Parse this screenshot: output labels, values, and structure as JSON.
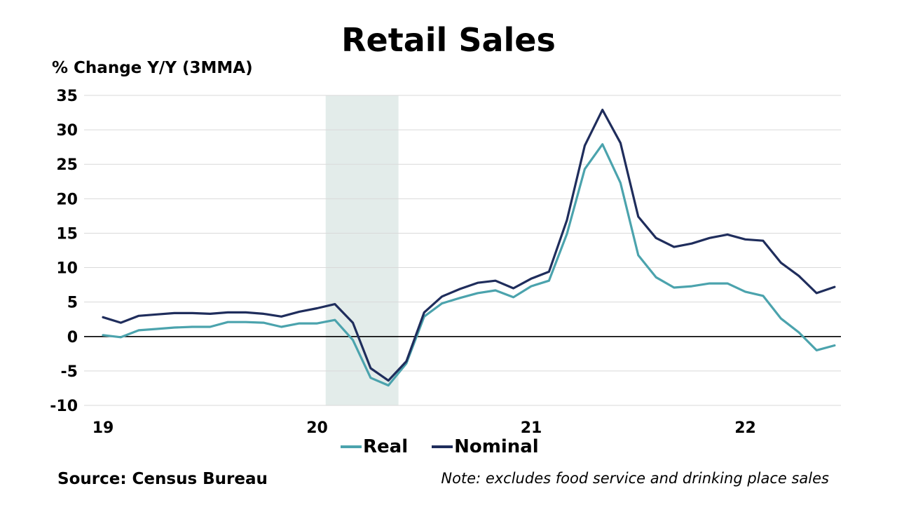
{
  "title": "Retail Sales",
  "ylabel": "%  Change Y/Y (3MMA)",
  "source": "Source: Census Bureau",
  "note": "Note: excludes food service and drinking place sales",
  "colors": {
    "real": "#4ba3ad",
    "nominal": "#1f2d5c",
    "recession": "#e3ecea",
    "grid": "#d9d9d9"
  },
  "chart_data": {
    "type": "line",
    "title": "Retail Sales",
    "ylabel": "%  Change Y/Y (3MMA)",
    "ylim": [
      -10,
      35
    ],
    "yticks": [
      -10,
      -5,
      0,
      5,
      10,
      15,
      20,
      25,
      30,
      35
    ],
    "xtick_labels": [
      "19",
      "20",
      "21",
      "22"
    ],
    "xlim": [
      2019.0,
      2022.45
    ],
    "grid": true,
    "legend_position": "bottom",
    "shaded_region": [
      2020.04,
      2020.38
    ],
    "x": [
      2019.0,
      2019.083,
      2019.167,
      2019.25,
      2019.333,
      2019.417,
      2019.5,
      2019.583,
      2019.667,
      2019.75,
      2019.833,
      2019.917,
      2020.0,
      2020.083,
      2020.167,
      2020.25,
      2020.333,
      2020.417,
      2020.5,
      2020.583,
      2020.667,
      2020.75,
      2020.833,
      2020.917,
      2021.0,
      2021.083,
      2021.167,
      2021.25,
      2021.333,
      2021.417,
      2021.5,
      2021.583,
      2021.667,
      2021.75,
      2021.833,
      2021.917,
      2022.0,
      2022.083,
      2022.167,
      2022.25,
      2022.333,
      2022.417
    ],
    "series": [
      {
        "name": "Real",
        "values": [
          0.2,
          -0.1,
          0.9,
          1.1,
          1.3,
          1.4,
          1.4,
          2.1,
          2.1,
          2.0,
          1.4,
          1.9,
          1.9,
          2.4,
          -0.5,
          -6.0,
          -7.1,
          -3.9,
          2.9,
          4.8,
          5.6,
          6.3,
          6.7,
          5.7,
          7.3,
          8.1,
          14.9,
          24.3,
          27.9,
          22.3,
          11.8,
          8.6,
          7.1,
          7.3,
          7.7,
          7.7,
          6.5,
          5.9,
          2.6,
          0.6,
          -2.0,
          -1.3
        ]
      },
      {
        "name": "Nominal",
        "values": [
          2.8,
          2.0,
          3.0,
          3.2,
          3.4,
          3.4,
          3.3,
          3.5,
          3.5,
          3.3,
          2.9,
          3.6,
          4.1,
          4.7,
          2.0,
          -4.6,
          -6.4,
          -3.6,
          3.5,
          5.8,
          6.9,
          7.8,
          8.1,
          7.0,
          8.4,
          9.4,
          16.9,
          27.7,
          32.9,
          28.1,
          17.4,
          14.3,
          13.0,
          13.5,
          14.3,
          14.8,
          14.1,
          13.9,
          10.7,
          8.8,
          6.3,
          7.2
        ]
      }
    ]
  }
}
